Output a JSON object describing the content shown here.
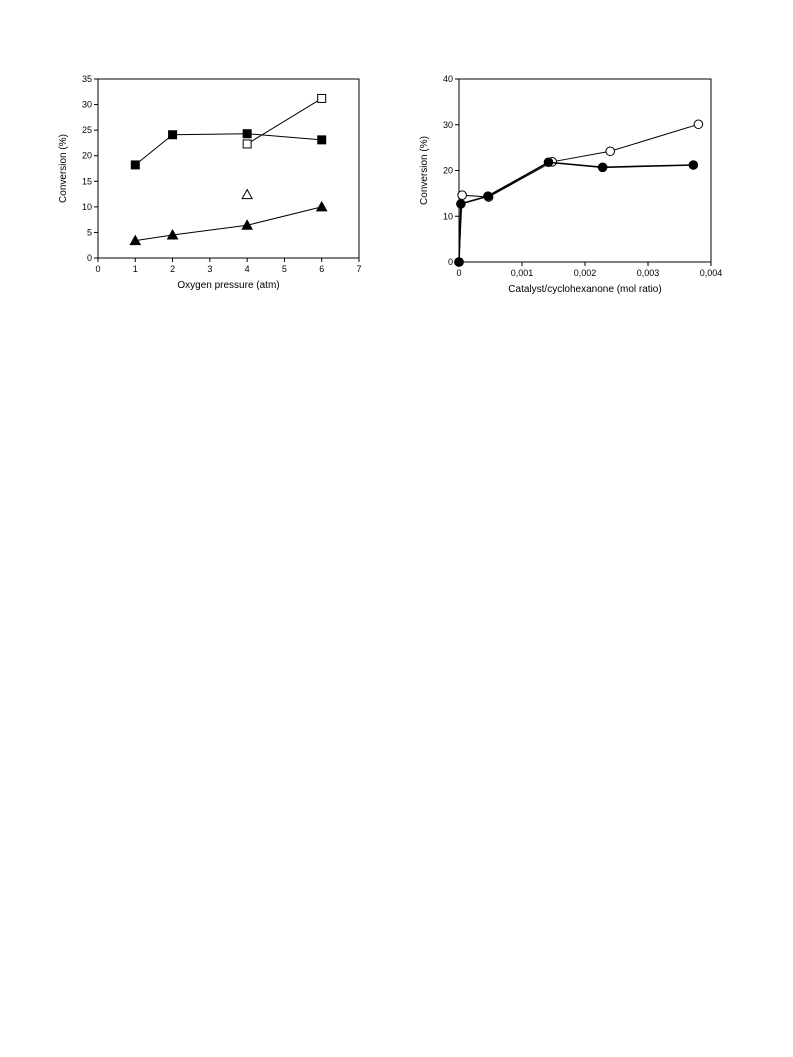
{
  "chart_data": [
    {
      "type": "scatter",
      "title": "",
      "xlabel": "Oxygen pressure (atm)",
      "ylabel": "Conversion (%)",
      "xlim": [
        0,
        7
      ],
      "ylim": [
        0,
        35
      ],
      "xticks": [
        "0",
        "1",
        "2",
        "3",
        "4",
        "5",
        "6",
        "7"
      ],
      "yticks": [
        "0",
        "5",
        "10",
        "15",
        "20",
        "25",
        "30",
        "35"
      ],
      "grid": false,
      "legend": "none",
      "series": [
        {
          "marker": "square-filled",
          "line": true,
          "points": [
            [
              1,
              18.2
            ],
            [
              2,
              24.1
            ],
            [
              4,
              24.3
            ],
            [
              6,
              23.1
            ]
          ]
        },
        {
          "marker": "square-open",
          "line": true,
          "points": [
            [
              4,
              22.3
            ],
            [
              6,
              31.2
            ]
          ]
        },
        {
          "marker": "triangle-filled",
          "line": true,
          "points": [
            [
              1,
              3.4
            ],
            [
              2,
              4.5
            ],
            [
              4,
              6.4
            ],
            [
              6,
              10.0
            ]
          ]
        },
        {
          "marker": "triangle-open",
          "line": false,
          "points": [
            [
              4,
              12.4
            ]
          ]
        }
      ]
    },
    {
      "type": "scatter",
      "title": "",
      "xlabel": "Catalyst/cyclohexanone (mol ratio)",
      "ylabel": "Conversion (%)",
      "xlim": [
        0,
        0.004
      ],
      "ylim": [
        0,
        40
      ],
      "xticks": [
        "0",
        "0,001",
        "0,002",
        "0,003",
        "0,004"
      ],
      "yticks": [
        "0",
        "10",
        "20",
        "30",
        "40"
      ],
      "grid": false,
      "legend": "none",
      "series": [
        {
          "marker": "circle-open",
          "line": true,
          "points": [
            [
              0,
              0
            ],
            [
              5e-05,
              14.6
            ],
            [
              0.00047,
              14.2
            ],
            [
              0.00148,
              21.9
            ],
            [
              0.0024,
              24.2
            ],
            [
              0.0038,
              30.1
            ]
          ]
        },
        {
          "marker": "circle-filled",
          "line": true,
          "points": [
            [
              0,
              0
            ],
            [
              3e-05,
              12.7
            ],
            [
              0.00046,
              14.4
            ],
            [
              0.00142,
              21.8
            ],
            [
              0.00228,
              20.7
            ],
            [
              0.00372,
              21.2
            ]
          ]
        }
      ]
    }
  ]
}
